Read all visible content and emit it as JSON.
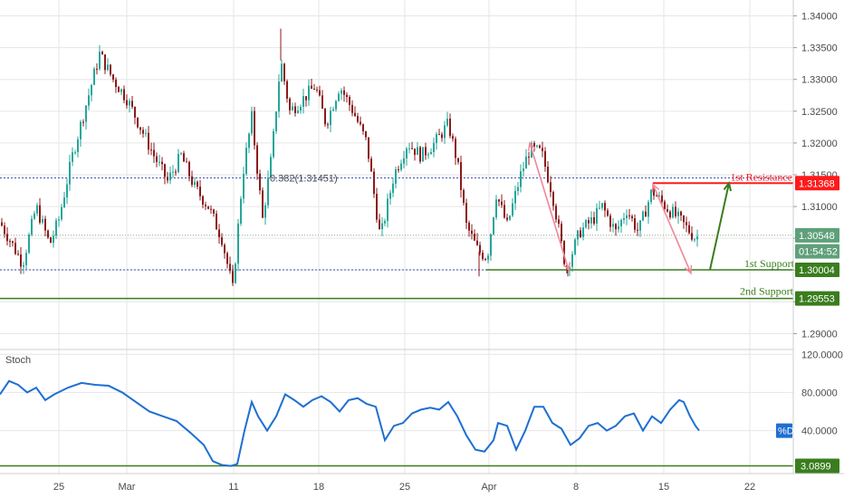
{
  "colors": {
    "up": "#26a69a",
    "down": "#8b1a1a",
    "resistance": "#ff1a1a",
    "support": "#3a7d1e",
    "fib": "#3f51b5",
    "stoch": "#1f6fd1",
    "pink": "#f08a9a",
    "price_tag": "#5fa07a",
    "grid": "#e6e6e6"
  },
  "chart_data": [
    {
      "type": "candlestick",
      "instrument_hint": "GBPUSD",
      "ylim": [
        1.2875,
        1.3425
      ],
      "y_ticks": [
        "1.34000",
        "1.33500",
        "1.33000",
        "1.32500",
        "1.32000",
        "1.31500",
        "1.31000",
        "1.30500",
        "1.30000",
        "1.29500",
        "1.29000"
      ],
      "x_ticks": [
        "25",
        "Mar",
        "11",
        "18",
        "25",
        "Apr",
        "8",
        "15",
        "22"
      ],
      "annotations": {
        "fib_label": "0.382(1.31451)",
        "fib_level": 1.31451,
        "resistance_label": "1st Resistance",
        "resistance_level": 1.31368,
        "support1_label": "1st Support",
        "support1_level": 1.30004,
        "support2_label": "2nd Support",
        "support2_level": 1.29553,
        "current_level": 1.30548
      },
      "price_tags": [
        {
          "name": "resistance-tag",
          "text": "1.31368",
          "value": 1.31368,
          "color": "#ff1a1a"
        },
        {
          "name": "current-price-tag",
          "text": "1.30548",
          "value": 1.30548,
          "color": "#5fa07a"
        },
        {
          "name": "countdown-tag",
          "text": "01:54:52",
          "value": 1.30295,
          "color": "#5fa07a"
        },
        {
          "name": "support1-tag",
          "text": "1.30004",
          "value": 1.30004,
          "color": "#3a7d1e"
        },
        {
          "name": "support2-tag",
          "text": "1.29553",
          "value": 1.29553,
          "color": "#3a7d1e"
        }
      ],
      "anchors": [
        [
          0,
          1.3075
        ],
        [
          10,
          1.305
        ],
        [
          25,
          1.301
        ],
        [
          40,
          1.31
        ],
        [
          55,
          1.304
        ],
        [
          65,
          1.308
        ],
        [
          80,
          1.318
        ],
        [
          95,
          1.326
        ],
        [
          110,
          1.334
        ],
        [
          125,
          1.33
        ],
        [
          140,
          1.327
        ],
        [
          155,
          1.3225
        ],
        [
          170,
          1.318
        ],
        [
          185,
          1.314
        ],
        [
          200,
          1.318
        ],
        [
          215,
          1.313
        ],
        [
          230,
          1.31
        ],
        [
          245,
          1.305
        ],
        [
          257,
          1.297
        ],
        [
          268,
          1.315
        ],
        [
          278,
          1.324
        ],
        [
          290,
          1.308
        ],
        [
          300,
          1.318
        ],
        [
          310,
          1.333
        ],
        [
          320,
          1.325
        ],
        [
          335,
          1.327
        ],
        [
          348,
          1.329
        ],
        [
          360,
          1.323
        ],
        [
          375,
          1.329
        ],
        [
          390,
          1.325
        ],
        [
          405,
          1.32
        ],
        [
          420,
          1.305
        ],
        [
          435,
          1.315
        ],
        [
          450,
          1.32
        ],
        [
          465,
          1.318
        ],
        [
          480,
          1.32
        ],
        [
          495,
          1.323
        ],
        [
          505,
          1.317
        ],
        [
          515,
          1.307
        ],
        [
          528,
          1.303
        ],
        [
          538,
          1.302
        ],
        [
          548,
          1.312
        ],
        [
          560,
          1.307
        ],
        [
          575,
          1.315
        ],
        [
          585,
          1.319
        ],
        [
          598,
          1.3185
        ],
        [
          610,
          1.312
        ],
        [
          625,
          1.3
        ],
        [
          640,
          1.306
        ],
        [
          655,
          1.308
        ],
        [
          665,
          1.31
        ],
        [
          680,
          1.306
        ],
        [
          692,
          1.3095
        ],
        [
          705,
          1.306
        ],
        [
          720,
          1.3125
        ],
        [
          735,
          1.31
        ],
        [
          750,
          1.308
        ],
        [
          768,
          1.305
        ],
        [
          772,
          1.3055
        ]
      ],
      "wick_extremes": [
        [
          310,
          1.338
        ],
        [
          529,
          1.299
        ],
        [
          627,
          1.299
        ]
      ],
      "pink_arrows": [
        {
          "from": [
            585,
            1.32
          ],
          "to": [
            628,
            1.3
          ]
        },
        {
          "from": [
            721,
            1.3135
          ],
          "to": [
            763,
            1.2995
          ]
        }
      ],
      "green_projection": {
        "from": [
          784,
          1.30004
        ],
        "to": [
          805,
          1.31368
        ]
      }
    },
    {
      "type": "line",
      "title": "Stoch",
      "ylim": [
        -5,
        125
      ],
      "y_ticks": [
        "120.0000",
        "80.0000",
        "40.0000"
      ],
      "series": [
        {
          "name": "%D",
          "label_value": 40,
          "points": [
            [
              0,
              78
            ],
            [
              10,
              92
            ],
            [
              20,
              88
            ],
            [
              30,
              80
            ],
            [
              40,
              85
            ],
            [
              50,
              72
            ],
            [
              60,
              78
            ],
            [
              75,
              85
            ],
            [
              90,
              90
            ],
            [
              105,
              88
            ],
            [
              120,
              87
            ],
            [
              135,
              80
            ],
            [
              150,
              70
            ],
            [
              165,
              60
            ],
            [
              180,
              55
            ],
            [
              195,
              50
            ],
            [
              210,
              38
            ],
            [
              225,
              25
            ],
            [
              235,
              8
            ],
            [
              245,
              4
            ],
            [
              255,
              3
            ],
            [
              262,
              5
            ],
            [
              270,
              40
            ],
            [
              278,
              70
            ],
            [
              285,
              55
            ],
            [
              295,
              40
            ],
            [
              305,
              55
            ],
            [
              315,
              78
            ],
            [
              325,
              72
            ],
            [
              335,
              65
            ],
            [
              345,
              72
            ],
            [
              355,
              76
            ],
            [
              365,
              70
            ],
            [
              375,
              60
            ],
            [
              385,
              72
            ],
            [
              395,
              74
            ],
            [
              405,
              68
            ],
            [
              415,
              65
            ],
            [
              425,
              30
            ],
            [
              435,
              45
            ],
            [
              445,
              48
            ],
            [
              455,
              58
            ],
            [
              465,
              62
            ],
            [
              475,
              64
            ],
            [
              485,
              62
            ],
            [
              495,
              70
            ],
            [
              505,
              55
            ],
            [
              515,
              35
            ],
            [
              525,
              20
            ],
            [
              535,
              18
            ],
            [
              545,
              30
            ],
            [
              550,
              48
            ],
            [
              560,
              45
            ],
            [
              570,
              20
            ],
            [
              580,
              40
            ],
            [
              590,
              65
            ],
            [
              600,
              65
            ],
            [
              610,
              48
            ],
            [
              620,
              42
            ],
            [
              630,
              25
            ],
            [
              640,
              32
            ],
            [
              650,
              45
            ],
            [
              660,
              48
            ],
            [
              670,
              40
            ],
            [
              680,
              45
            ],
            [
              690,
              55
            ],
            [
              700,
              58
            ],
            [
              710,
              40
            ],
            [
              720,
              55
            ],
            [
              730,
              48
            ],
            [
              740,
              62
            ],
            [
              750,
              72
            ],
            [
              755,
              70
            ],
            [
              762,
              55
            ],
            [
              768,
              45
            ],
            [
              772,
              40
            ]
          ]
        }
      ],
      "reference_value": 3.0899,
      "reference_label": "3.0899"
    }
  ]
}
